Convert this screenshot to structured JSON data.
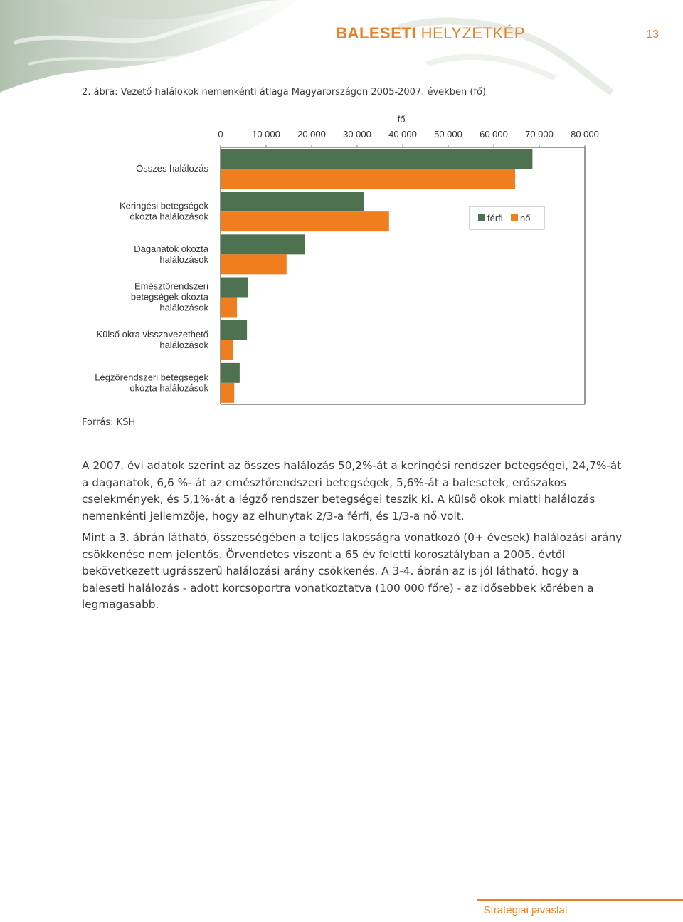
{
  "header": {
    "title_bold": "BALESETI",
    "title_rest": " HELYZETKÉP",
    "page_number": "13"
  },
  "figure_caption": "2. ábra: Vezető halálokok nemenkénti átlaga Magyarországon 2005-2007. években (fő)",
  "chart_data": {
    "type": "bar",
    "orientation": "horizontal",
    "xlabel": "fő",
    "xlim": [
      0,
      80000
    ],
    "xticks": [
      0,
      10000,
      20000,
      30000,
      40000,
      50000,
      60000,
      70000,
      80000
    ],
    "xtick_labels": [
      "0",
      "10 000",
      "20 000",
      "30 000",
      "40 000",
      "50 000",
      "60 000",
      "70 000",
      "80 000"
    ],
    "categories": [
      "Összes halálozás",
      "Keringési betegségek okozta halálozások",
      "Daganatok okozta halálozások",
      "Emésztőrendszeri betegségek okozta halálozások",
      "Külső okra visszavezethető halálozások",
      "Légzőrendszeri betegségek okozta halálozások"
    ],
    "category_lines": [
      [
        "Összes halálozás"
      ],
      [
        "Keringési betegségek",
        "okozta halálozások"
      ],
      [
        "Daganatok okozta",
        "halálozások"
      ],
      [
        "Emésztőrendszeri",
        "betegségek okozta",
        "halálozások"
      ],
      [
        "Külső okra visszavezethető",
        "halálozások"
      ],
      [
        "Légzőrendszeri betegségek",
        "okozta halálozások"
      ]
    ],
    "series": [
      {
        "name": "férfi",
        "color": "#4e7150",
        "values": [
          68500,
          31500,
          18500,
          6000,
          5800,
          4200
        ]
      },
      {
        "name": "nő",
        "color": "#f07e1e",
        "values": [
          64700,
          37000,
          14500,
          3600,
          2700,
          3000
        ]
      }
    ],
    "legend_position": "right",
    "grid": false
  },
  "source": "Forrás: KSH",
  "paragraphs": [
    "A 2007. évi adatok szerint az összes halálozás 50,2%-át a keringési rendszer betegségei, 24,7%-át a daganatok, 6,6 %- át az emésztőrendszeri betegségek, 5,6%-át a balesetek, erőszakos cselekmények, és 5,1%-át a légző rendszer betegségei teszik ki. A külső okok miatti halálozás nemenkénti jellemzője, hogy az elhunytak 2/3-a férfi, és 1/3-a nő volt.",
    "Mint a 3. ábrán látható, összességében a teljes lakosságra vonatkozó (0+ évesek) halálozási arány csökkenése nem jelentős. Örvendetes viszont a 65 év feletti korosztályban a 2005. évtől bekövetkezett ugrásszerű halálozási arány csökkenés. A 3-4. ábrán az is jól látható, hogy a baleseti halálozás - adott korcsoportra vonatkoztatva (100 000 főre) - az idősebbek körében a legmagasabb."
  ],
  "footer": {
    "label": "Stratégiai javaslat"
  }
}
